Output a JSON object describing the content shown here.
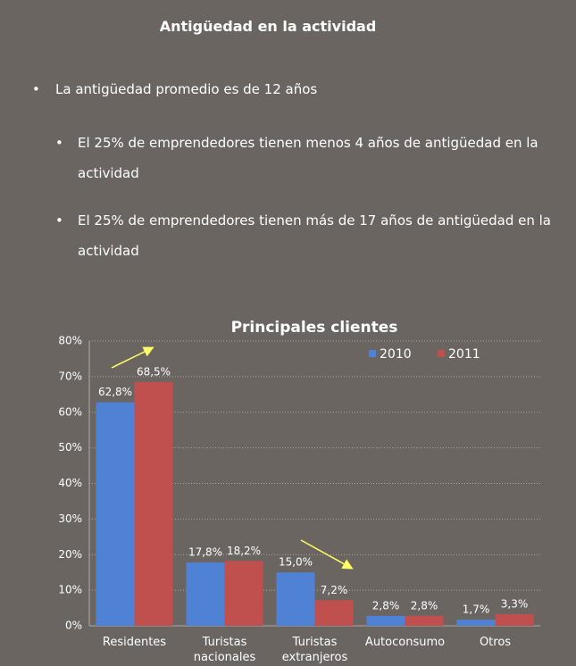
{
  "title": "Antigüedad en la actividad",
  "bullets": [
    {
      "text": "La antigüedad promedio es de 12 años",
      "sub": [
        "El 25% de emprendedores tienen menos 4 años de antigüedad en la actividad",
        "El 25% de emprendedores tienen más de 17 años de antigüedad en la actividad"
      ]
    }
  ],
  "chart_data": {
    "type": "bar",
    "title": "Principales clientes",
    "categories": [
      "Residentes",
      "Turistas nacionales",
      "Turistas extranjeros",
      "Autoconsumo",
      "Otros"
    ],
    "series": [
      {
        "name": "2010",
        "color": "#4f81d4",
        "values": [
          62.8,
          17.8,
          15.0,
          2.8,
          1.7
        ],
        "value_labels": [
          "62,8%",
          "17,8%",
          "15,0%",
          "2,8%",
          "1,7%"
        ]
      },
      {
        "name": "2011",
        "color": "#c0504d",
        "values": [
          68.5,
          18.2,
          7.2,
          2.8,
          3.3
        ],
        "value_labels": [
          "68,5%",
          "18,2%",
          "7,2%",
          "2,8%",
          "3,3%"
        ]
      }
    ],
    "ylim": [
      0,
      80
    ],
    "yticks": [
      {
        "value": 0,
        "label": "0%"
      },
      {
        "value": 10,
        "label": "10%"
      },
      {
        "value": 20,
        "label": "20%"
      },
      {
        "value": 30,
        "label": "30%"
      },
      {
        "value": 40,
        "label": "40%"
      },
      {
        "value": 50,
        "label": "50%"
      },
      {
        "value": 60,
        "label": "60%"
      },
      {
        "value": 70,
        "label": "70%"
      },
      {
        "value": 80,
        "label": "80%"
      }
    ],
    "grid": true,
    "legend": "top-right"
  }
}
